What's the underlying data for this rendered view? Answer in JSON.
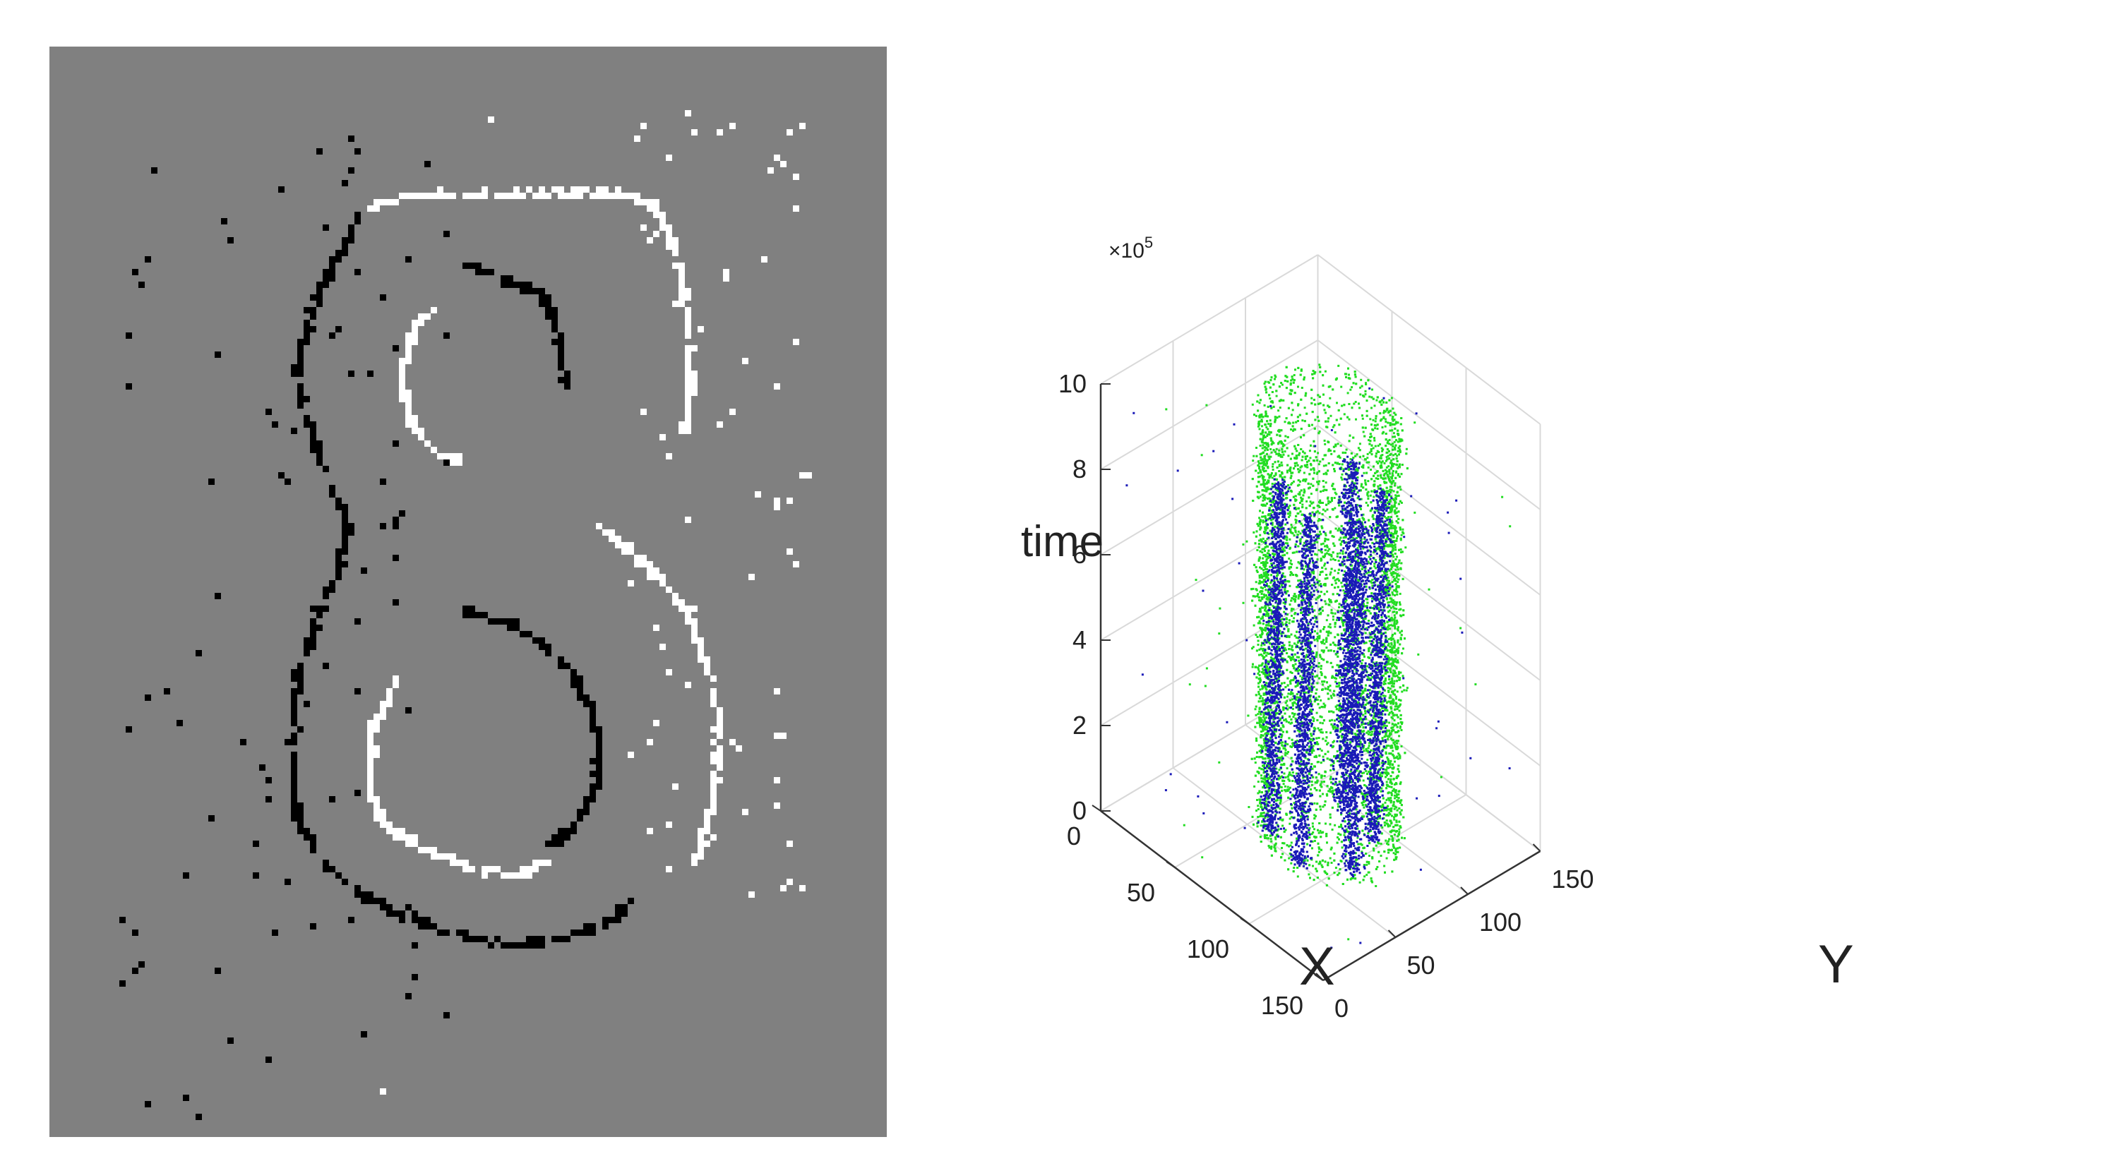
{
  "colors": {
    "background_gray": "#808080",
    "on_events": "#ffffff",
    "off_events": "#000000",
    "series_green": "#22dd22",
    "series_blue": "#1a1ab8",
    "grid": "#d9d9d9",
    "axis": "#333333"
  },
  "chart_data": [
    {
      "type": "heatmap",
      "description": "Event-camera frame of the digit 8: white pixels are ON events, black pixels are OFF events on a gray background",
      "grid": "off",
      "title": "",
      "xlabel": "",
      "ylabel": ""
    },
    {
      "type": "scatter",
      "title": "",
      "xlabel": "X",
      "ylabel": "Y",
      "zlabel": "time",
      "z_exponent_label": "×10",
      "z_exponent_power": "5",
      "xlim": [
        0,
        150
      ],
      "ylim": [
        0,
        150
      ],
      "zlim": [
        0,
        1000000
      ],
      "x_ticks": [
        "0",
        "50",
        "100",
        "150"
      ],
      "y_ticks": [
        "0",
        "50",
        "100",
        "150"
      ],
      "z_ticks": [
        "0",
        "2",
        "4",
        "6",
        "8",
        "10"
      ],
      "z_tick_values": [
        0,
        200000,
        400000,
        600000,
        800000,
        1000000
      ],
      "grid": "on",
      "legend": "none",
      "series": [
        {
          "color": "#22dd22",
          "approx_points": 9000
        },
        {
          "color": "#1a1ab8",
          "approx_points": 9000
        }
      ]
    }
  ]
}
